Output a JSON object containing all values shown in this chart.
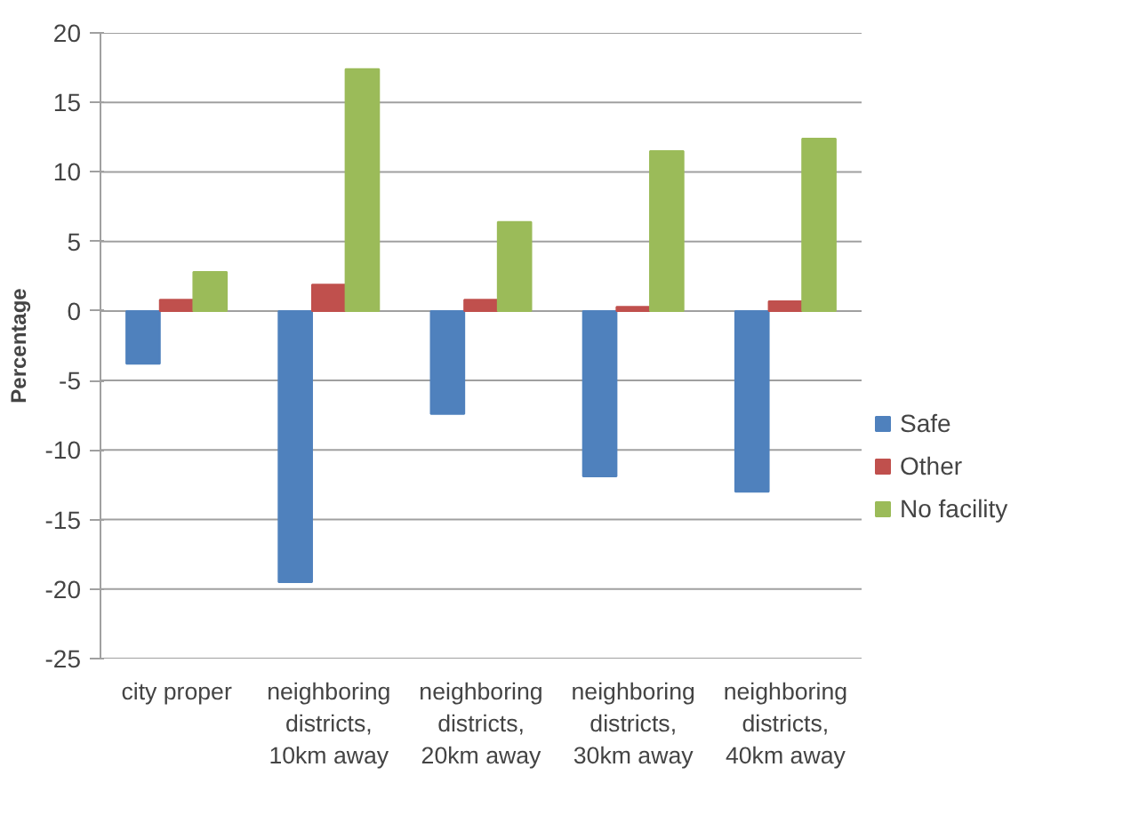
{
  "chart_data": {
    "type": "bar",
    "ylabel": "Percentage",
    "categories": [
      "city proper",
      "neighboring districts, 10km away",
      "neighboring districts, 20km away",
      "neighboring districts, 30km away",
      "neighboring districts, 40km away"
    ],
    "series": [
      {
        "name": "Safe",
        "color": "#4f81bd",
        "values": [
          -3.8,
          -19.5,
          -7.4,
          -11.9,
          -13.0
        ]
      },
      {
        "name": "Other",
        "color": "#c0504d",
        "values": [
          0.8,
          1.9,
          0.8,
          0.3,
          0.7
        ]
      },
      {
        "name": "No facility",
        "color": "#9bbb59",
        "values": [
          2.8,
          17.4,
          6.4,
          11.5,
          12.4
        ]
      }
    ],
    "ylim": [
      -25,
      20
    ],
    "yticks": [
      -25,
      -20,
      -15,
      -10,
      -5,
      0,
      5,
      10,
      15,
      20
    ],
    "grid": "y",
    "legend": "right"
  }
}
